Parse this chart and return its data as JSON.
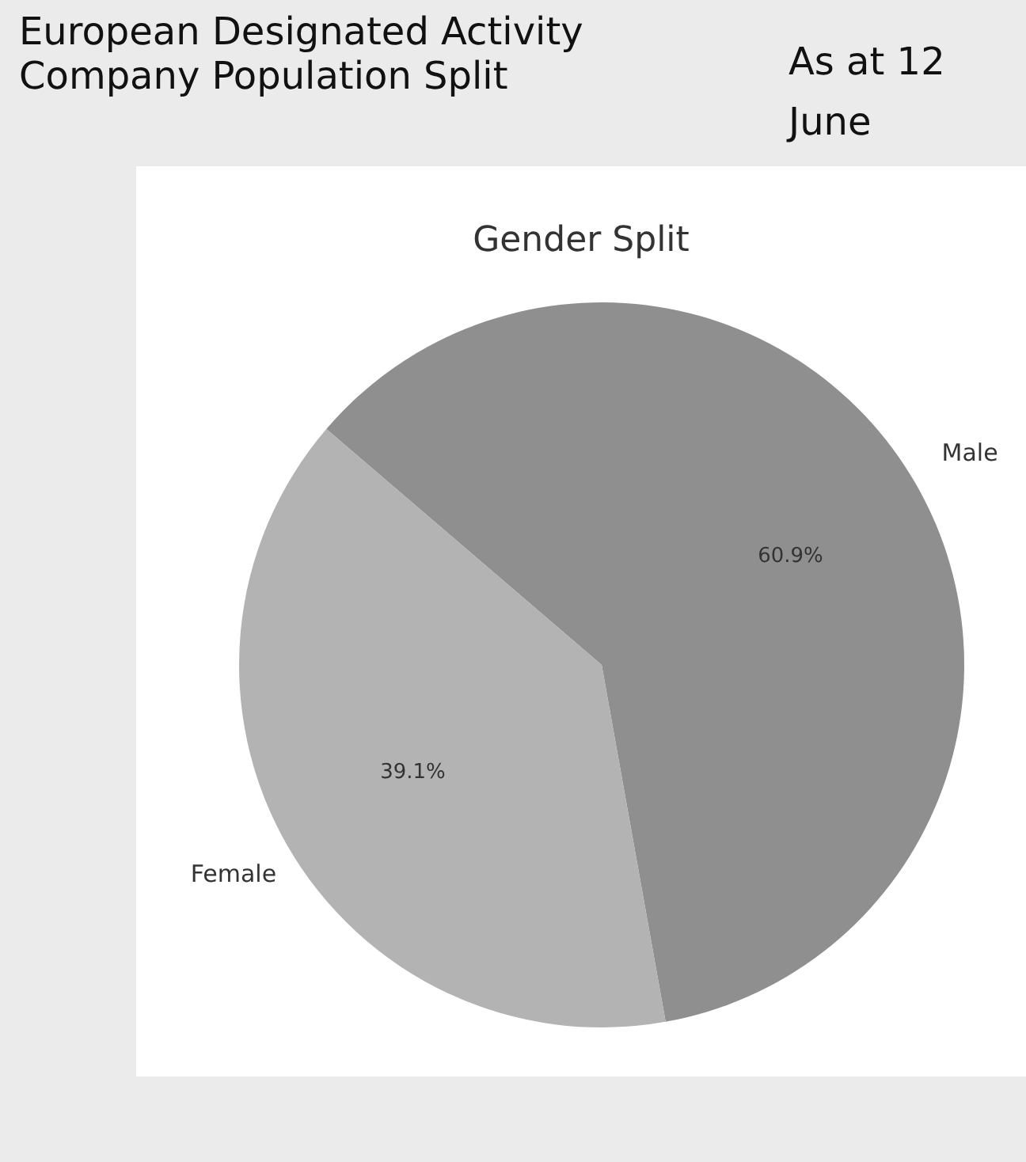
{
  "chart_data": {
    "type": "pie",
    "title": "Gender Split",
    "subtitle": "European Designated Activity Company Population Split",
    "annotations": [
      "As at 12 June"
    ],
    "categories": [
      "Male",
      "Female"
    ],
    "values": [
      60.9,
      39.1
    ],
    "colors": [
      "#8f8f8f",
      "#b3b3b3"
    ],
    "value_labels": [
      "60.9%",
      "39.1%"
    ],
    "legend": false
  }
}
